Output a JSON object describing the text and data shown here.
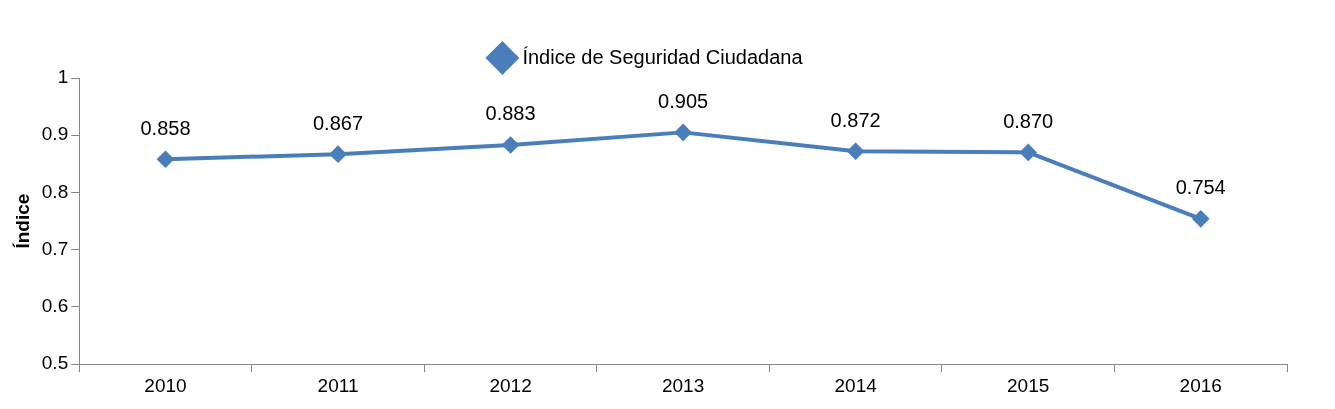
{
  "chart_data": {
    "type": "line",
    "ylabel": "Índice",
    "categories": [
      "2010",
      "2011",
      "2012",
      "2013",
      "2014",
      "2015",
      "2016"
    ],
    "series": [
      {
        "name": "Índice de Seguridad Ciudadana",
        "color": "#4a7ebb",
        "values": [
          0.858,
          0.867,
          0.883,
          0.905,
          0.872,
          0.87,
          0.754
        ],
        "value_labels": [
          "0.858",
          "0.867",
          "0.883",
          "0.905",
          "0.872",
          "0.870",
          "0.754"
        ]
      }
    ],
    "ylim": [
      0.5,
      1
    ],
    "yticks": [
      0.5,
      0.6,
      0.7,
      0.8,
      0.9,
      1
    ],
    "grid": false,
    "legend": "top",
    "marker": "diamond",
    "line_style": "solid"
  }
}
